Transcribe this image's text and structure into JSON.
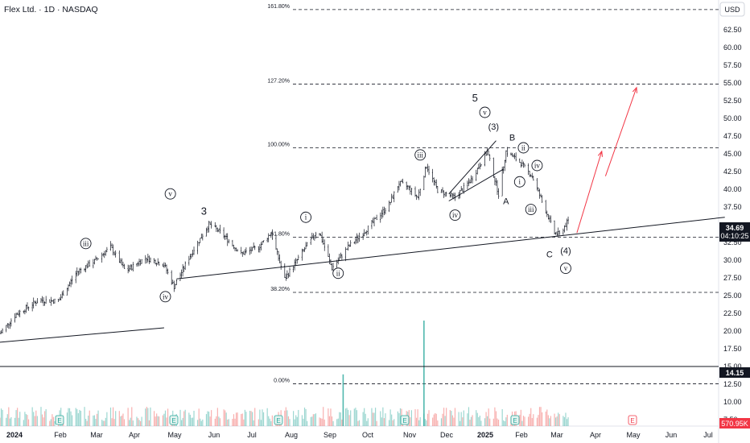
{
  "header": {
    "title": "Flex Ltd. · 1D · NASDAQ",
    "currency_button": "USD"
  },
  "price_axis": {
    "labels": [
      "62.50",
      "60.00",
      "57.50",
      "55.00",
      "52.50",
      "50.00",
      "47.50",
      "45.00",
      "42.50",
      "40.00",
      "37.50",
      "32.50",
      "30.00",
      "27.50",
      "25.00",
      "22.50",
      "20.00",
      "17.50",
      "15.00",
      "12.50",
      "10.00",
      "7.50"
    ]
  },
  "time_axis": {
    "labels": [
      "2024",
      "Feb",
      "Mar",
      "Apr",
      "May",
      "Jun",
      "Jul",
      "Aug",
      "Sep",
      "Oct",
      "Nov",
      "Dec",
      "2025",
      "Feb",
      "Mar",
      "Apr",
      "May",
      "Jun",
      "Jul"
    ]
  },
  "price_tags": {
    "last_price": "34.69",
    "countdown": "04:10:25",
    "support_price": "14.15",
    "volume": "570.95K"
  },
  "fib_levels": [
    "161.80%",
    "127.20%",
    "100.00%",
    "61.80%",
    "38.20%",
    "0.00%"
  ],
  "wave_labels": {
    "main": [
      "3",
      "5",
      "(3)",
      "B",
      "A",
      "C",
      "(4)"
    ],
    "circled": [
      "iii",
      "iv",
      "v",
      "i",
      "ii",
      "iii",
      "iv",
      "v",
      "ii",
      "iv",
      "i",
      "iii",
      "v"
    ]
  },
  "event_markers": [
    "E",
    "E",
    "E",
    "E",
    "E",
    "E"
  ],
  "colors": {
    "candle_up": "#26a69a",
    "candle_down": "#ef5350",
    "bar": "#131722",
    "projection_arrow": "#f23645",
    "volume_spike": "#26a69a",
    "last_price_tag": "#131722",
    "volume_tag": "#f23645"
  },
  "chart_data": {
    "type": "candlestick",
    "symbol": "Flex Ltd.",
    "interval": "1D",
    "exchange": "NASDAQ",
    "ylim": [
      6.5,
      65
    ],
    "x_range": [
      "2023-12-20",
      "2025-07-20"
    ],
    "price_path": [
      {
        "date": "2023-12-20",
        "price": 18.8
      },
      {
        "date": "2024-01-02",
        "price": 21.5
      },
      {
        "date": "2024-01-20",
        "price": 23.5
      },
      {
        "date": "2024-02-05",
        "price": 23.4
      },
      {
        "date": "2024-02-20",
        "price": 27.5
      },
      {
        "date": "2024-03-05",
        "price": 29.0
      },
      {
        "date": "2024-03-18",
        "price": 31.0
      },
      {
        "date": "2024-03-30",
        "price": 27.6
      },
      {
        "date": "2024-04-15",
        "price": 29.5
      },
      {
        "date": "2024-04-30",
        "price": 28.5
      },
      {
        "date": "2024-05-08",
        "price": 25.4
      },
      {
        "date": "2024-05-20",
        "price": 29.5
      },
      {
        "date": "2024-06-05",
        "price": 34.2
      },
      {
        "date": "2024-06-15",
        "price": 33.0
      },
      {
        "date": "2024-07-01",
        "price": 30.0
      },
      {
        "date": "2024-07-15",
        "price": 31.0
      },
      {
        "date": "2024-07-25",
        "price": 33.0
      },
      {
        "date": "2024-08-05",
        "price": 26.5
      },
      {
        "date": "2024-08-20",
        "price": 30.5
      },
      {
        "date": "2024-09-01",
        "price": 33.5
      },
      {
        "date": "2024-09-12",
        "price": 28.0
      },
      {
        "date": "2024-09-25",
        "price": 31.0
      },
      {
        "date": "2024-10-10",
        "price": 33.5
      },
      {
        "date": "2024-10-28",
        "price": 37.0
      },
      {
        "date": "2024-11-05",
        "price": 40.0
      },
      {
        "date": "2024-11-12",
        "price": 39.5
      },
      {
        "date": "2024-11-20",
        "price": 38.0
      },
      {
        "date": "2024-11-27",
        "price": 42.5
      },
      {
        "date": "2024-12-06",
        "price": 39.0
      },
      {
        "date": "2024-12-20",
        "price": 38.0
      },
      {
        "date": "2025-01-02",
        "price": 40.5
      },
      {
        "date": "2025-01-15",
        "price": 44.5
      },
      {
        "date": "2025-01-24",
        "price": 38.5
      },
      {
        "date": "2025-01-30",
        "price": 44.5
      },
      {
        "date": "2025-02-10",
        "price": 43.0
      },
      {
        "date": "2025-02-20",
        "price": 41.0
      },
      {
        "date": "2025-03-01",
        "price": 37.0
      },
      {
        "date": "2025-03-10",
        "price": 33.0
      },
      {
        "date": "2025-03-14",
        "price": 32.8
      },
      {
        "date": "2025-03-21",
        "price": 34.69
      }
    ],
    "volume_spikes": [
      {
        "date": "2024-09-21",
        "volume_rel": 0.49
      },
      {
        "date": "2024-11-25",
        "volume_rel": 1.0
      }
    ],
    "fibonacci": [
      {
        "label": "161.80%",
        "price": 64.5
      },
      {
        "label": "127.20%",
        "price": 54.0
      },
      {
        "label": "100.00%",
        "price": 45.0
      },
      {
        "label": "61.80%",
        "price": 32.4
      },
      {
        "label": "38.20%",
        "price": 24.6
      },
      {
        "label": "0.00%",
        "price": 11.7
      }
    ],
    "trendlines": [
      {
        "from": {
          "date": "2023-12-15",
          "price": 17.5
        },
        "to": {
          "date": "2024-04-30",
          "price": 19.6
        }
      },
      {
        "from": {
          "date": "2024-05-10",
          "price": 26.5
        },
        "to": {
          "date": "2025-07-25",
          "price": 35.2
        }
      },
      {
        "from": {
          "date": "2024-12-15",
          "price": 38.5
        },
        "to": {
          "date": "2025-01-22",
          "price": 46.0
        }
      },
      {
        "from": {
          "date": "2024-12-15",
          "price": 37.5
        },
        "to": {
          "date": "2025-01-28",
          "price": 42.0
        }
      }
    ],
    "projection_arrows": [
      {
        "from": {
          "date": "2025-03-28",
          "price": 33.0
        },
        "to": {
          "date": "2025-04-17",
          "price": 44.5
        }
      },
      {
        "from": {
          "date": "2025-04-20",
          "price": 41.0
        },
        "to": {
          "date": "2025-05-15",
          "price": 53.5
        }
      }
    ],
    "horizontal_line": {
      "price": 14.15
    },
    "last_price": 34.69,
    "annotations": [
      {
        "text": "iii",
        "date": "2024-02-27",
        "price": 31.5,
        "circled": true
      },
      {
        "text": "iv",
        "date": "2024-05-01",
        "price": 24.0,
        "circled": true
      },
      {
        "text": "v",
        "date": "2024-05-05",
        "price": 38.5,
        "circled": true
      },
      {
        "text": "3",
        "date": "2024-06-01",
        "price": 36.0,
        "circled": false
      },
      {
        "text": "i",
        "date": "2024-08-22",
        "price": 35.2,
        "circled": true
      },
      {
        "text": "ii",
        "date": "2024-09-17",
        "price": 27.3,
        "circled": true
      },
      {
        "text": "iii",
        "date": "2024-11-22",
        "price": 44.0,
        "circled": true
      },
      {
        "text": "iv",
        "date": "2024-12-20",
        "price": 35.5,
        "circled": true
      },
      {
        "text": "5",
        "date": "2025-01-05",
        "price": 52.0,
        "circled": false
      },
      {
        "text": "v",
        "date": "2025-01-13",
        "price": 50.0,
        "circled": true
      },
      {
        "text": "(3)",
        "date": "2025-01-20",
        "price": 48.0,
        "circled": false
      },
      {
        "text": "B",
        "date": "2025-02-04",
        "price": 46.5,
        "circled": false
      },
      {
        "text": "ii",
        "date": "2025-02-13",
        "price": 45.0,
        "circled": true
      },
      {
        "text": "iv",
        "date": "2025-02-24",
        "price": 42.5,
        "circled": true
      },
      {
        "text": "i",
        "date": "2025-02-10",
        "price": 40.2,
        "circled": true
      },
      {
        "text": "A",
        "date": "2025-01-30",
        "price": 37.5,
        "circled": false
      },
      {
        "text": "iii",
        "date": "2025-02-19",
        "price": 36.3,
        "circled": true
      },
      {
        "text": "C",
        "date": "2025-03-06",
        "price": 30.0,
        "circled": false
      },
      {
        "text": "(4)",
        "date": "2025-03-19",
        "price": 30.5,
        "circled": false
      },
      {
        "text": "v",
        "date": "2025-03-19",
        "price": 28.0,
        "circled": true
      }
    ]
  }
}
